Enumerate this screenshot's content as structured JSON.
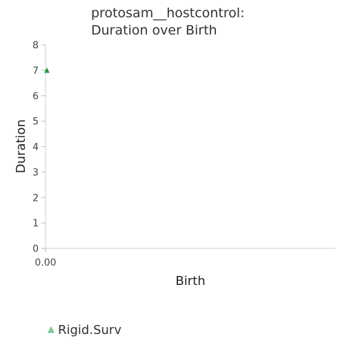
{
  "chart_data": {
    "type": "scatter",
    "title_lines": [
      "protosam__hostcontrol:",
      "Duration over Birth"
    ],
    "xlabel": "Birth",
    "ylabel": "Duration",
    "xlim": [
      0,
      1
    ],
    "ylim": [
      0,
      8
    ],
    "x_ticks": [
      0
    ],
    "x_tick_labels": [
      "0.00"
    ],
    "y_ticks": [
      0,
      1,
      2,
      3,
      4,
      5,
      6,
      7,
      8
    ],
    "y_tick_labels": [
      "0",
      "1",
      "2",
      "3",
      "4",
      "5",
      "6",
      "7",
      "8"
    ],
    "grid": false,
    "legend_position": "bottom-left",
    "series": [
      {
        "name": "Rigid.Surv",
        "marker": "triangle",
        "color": "#1a9a3a",
        "legend_color": "#8fd0a0",
        "points": [
          [
            0,
            7
          ]
        ]
      }
    ]
  }
}
